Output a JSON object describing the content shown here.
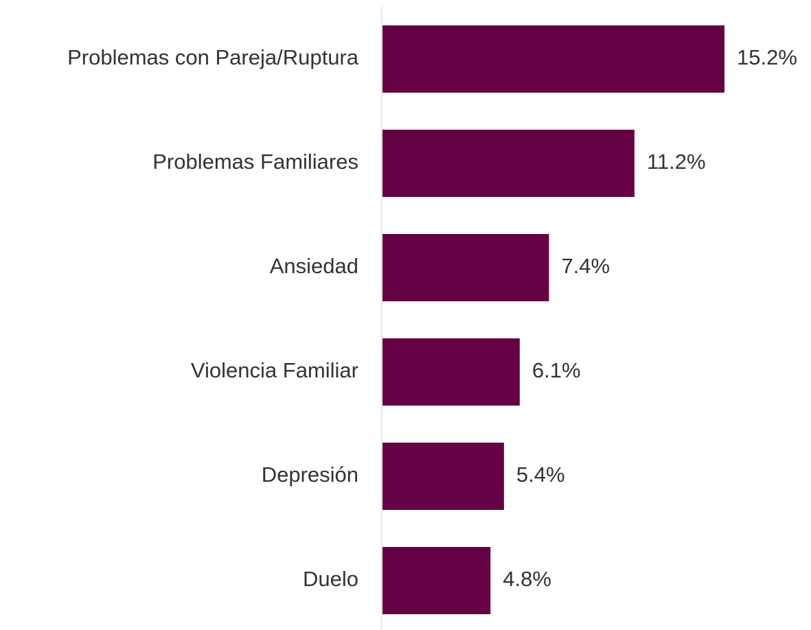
{
  "chart_data": {
    "type": "bar",
    "orientation": "horizontal",
    "categories": [
      "Problemas con Pareja/Ruptura",
      "Problemas Familiares",
      "Ansiedad",
      "Violencia Familiar",
      "Depresión",
      "Duelo"
    ],
    "values": [
      15.2,
      11.2,
      7.4,
      6.1,
      5.4,
      4.8
    ],
    "value_labels": [
      "15.2%",
      "11.2%",
      "7.4%",
      "6.1%",
      "5.4%",
      "4.8%"
    ],
    "color": "#660044"
  }
}
